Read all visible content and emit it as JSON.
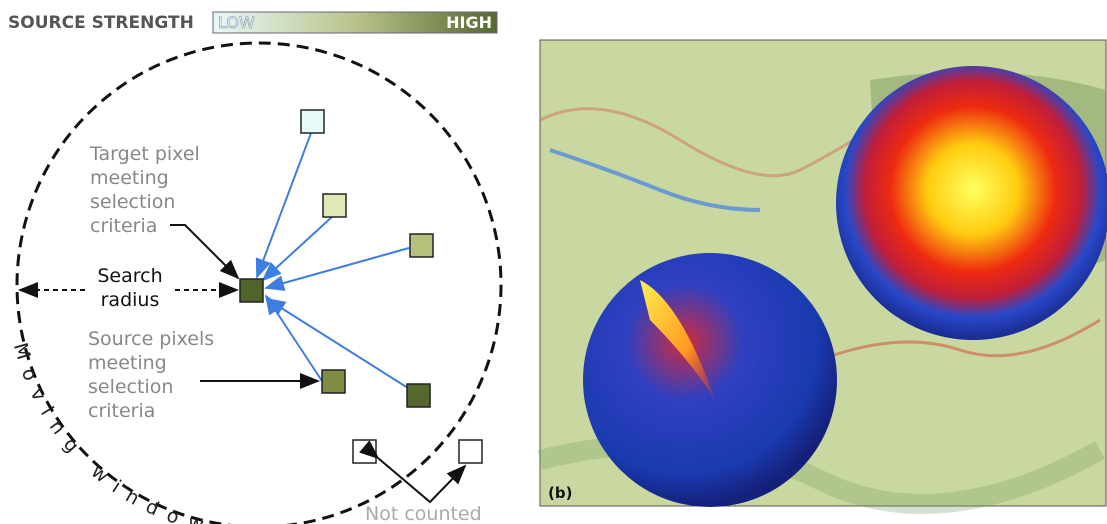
{
  "legend": {
    "title": "SOURCE STRENGTH",
    "low": "LOW",
    "high": "HIGH"
  },
  "labels": {
    "target": [
      "Target pixel",
      "meeting",
      "selection",
      "criteria"
    ],
    "search": [
      "Search",
      "radius"
    ],
    "source": [
      "Source pixels",
      "meeting",
      "selection",
      "criteria"
    ],
    "window": "Moving window",
    "not_counted": "Not counted"
  },
  "panel_b": {
    "label": "(b)"
  }
}
